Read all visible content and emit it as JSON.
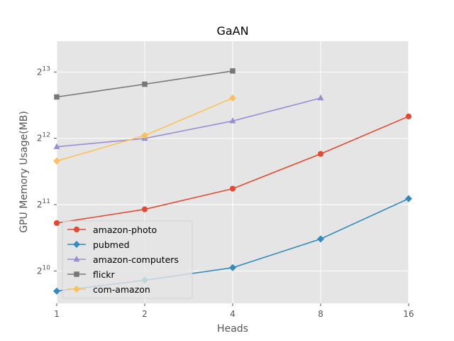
{
  "chart_data": {
    "type": "line",
    "title": "GaAN",
    "xlabel": "Heads",
    "ylabel": "GPU Memory Usage(MB)",
    "x_scale": "log2",
    "y_scale": "log2",
    "xlim": [
      1,
      16
    ],
    "ylim": [
      730,
      11300
    ],
    "x_ticks": [
      1,
      2,
      4,
      8,
      16
    ],
    "x_tick_labels": [
      "1",
      "2",
      "4",
      "8",
      "16"
    ],
    "y_ticks": [
      1024,
      2048,
      4096,
      8192
    ],
    "y_tick_labels": [
      {
        "base": "2",
        "exp": "10"
      },
      {
        "base": "2",
        "exp": "11"
      },
      {
        "base": "2",
        "exp": "12"
      },
      {
        "base": "2",
        "exp": "13"
      }
    ],
    "grid": true,
    "legend_position": "lower-left",
    "series": [
      {
        "name": "amazon-photo",
        "color": "#E24A33",
        "marker": "circle",
        "x": [
          1,
          2,
          4,
          8,
          16
        ],
        "y": [
          1690,
          1950,
          2420,
          3480,
          5150
        ]
      },
      {
        "name": "pubmed",
        "color": "#348ABD",
        "marker": "diamond",
        "x": [
          1,
          2,
          4,
          8,
          16
        ],
        "y": [
          830,
          930,
          1060,
          1430,
          2180
        ]
      },
      {
        "name": "amazon-computers",
        "color": "#988ED5",
        "marker": "triangle",
        "x": [
          1,
          2,
          4,
          8
        ],
        "y": [
          3750,
          4090,
          4910,
          6240
        ]
      },
      {
        "name": "flickr",
        "color": "#777777",
        "marker": "square",
        "x": [
          1,
          2,
          4
        ],
        "y": [
          6310,
          7210,
          8280
        ]
      },
      {
        "name": "com-amazon",
        "color": "#FBC15E",
        "marker": "diamond",
        "x": [
          1,
          2,
          4
        ],
        "y": [
          3230,
          4220,
          6240
        ]
      }
    ]
  }
}
